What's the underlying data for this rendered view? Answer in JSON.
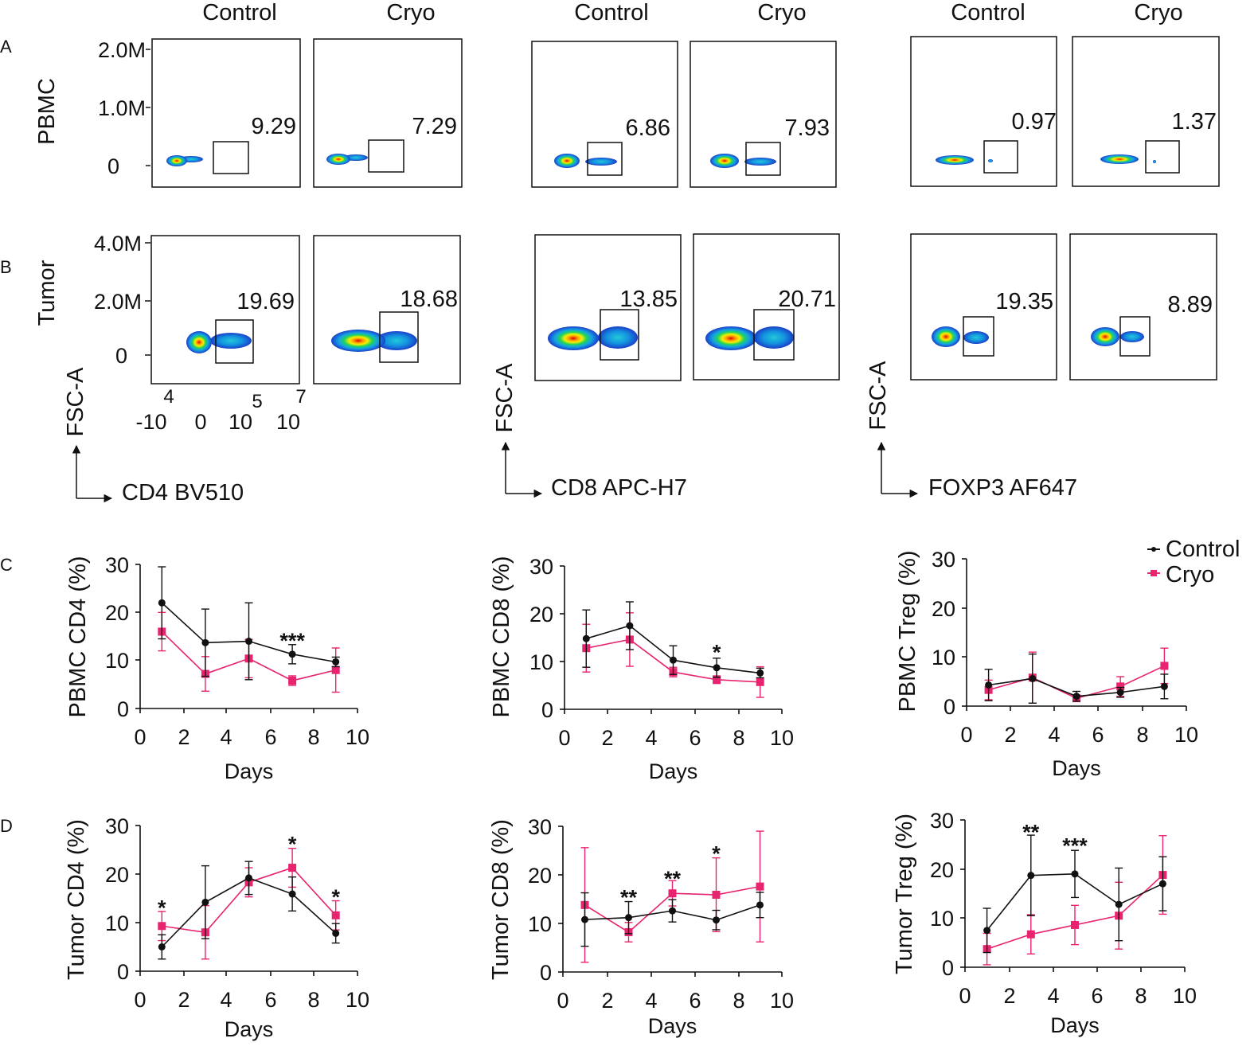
{
  "panel_letters": {
    "A": "A",
    "B": "B",
    "C": "C",
    "D": "D"
  },
  "column_headers": {
    "cd4_control": "Control",
    "cd4_cryo": "Cryo",
    "cd8_control": "Control",
    "cd8_cryo": "Cryo",
    "foxp3_control": "Control",
    "foxp3_cryo": "Cryo"
  },
  "row_labels": {
    "pbmc": "PBMC",
    "tumor": "Tumor"
  },
  "flow_axis": {
    "pbmc_ticks": [
      "2.0M",
      "1.0M",
      "0"
    ],
    "tumor_ticks": [
      "4.0M",
      "2.0M",
      "0"
    ],
    "x_exp": [
      "4",
      "5",
      "7"
    ],
    "x_base": [
      "-10",
      "0",
      "10",
      "10"
    ],
    "fsc_label": "FSC-A",
    "marker_cd4": "CD4  BV510",
    "marker_cd8": "CD8 APC-H7",
    "marker_foxp3": "FOXP3 AF647"
  },
  "flow_values": {
    "pbmc_cd4_control": "9.29",
    "pbmc_cd4_cryo": "7.29",
    "pbmc_cd8_control": "6.86",
    "pbmc_cd8_cryo": "7.93",
    "pbmc_foxp3_control": "0.97",
    "pbmc_foxp3_cryo": "1.37",
    "tumor_cd4_control": "19.69",
    "tumor_cd4_cryo": "18.68",
    "tumor_cd8_control": "13.85",
    "tumor_cd8_cryo": "20.71",
    "tumor_foxp3_control": "19.35",
    "tumor_foxp3_cryo": "8.89"
  },
  "legend": {
    "control": "Control",
    "cryo": "Cryo"
  },
  "colors": {
    "control": "#111111",
    "cryo": "#e8236f"
  },
  "chart_data": [
    {
      "id": "c1",
      "type": "line",
      "title": "",
      "xlabel": "Days",
      "ylabel": "PBMC CD4 (%)",
      "xlim": [
        0,
        10
      ],
      "ylim": [
        0,
        30
      ],
      "xticks": [
        "0",
        "2",
        "4",
        "6",
        "8",
        "10"
      ],
      "yticks": [
        "0",
        "10",
        "20",
        "30"
      ],
      "x": [
        1,
        3,
        5,
        7,
        9
      ],
      "series": [
        {
          "name": "Control",
          "values": [
            22,
            13.7,
            14,
            11.3,
            9.7
          ],
          "errors": [
            7.5,
            7,
            8,
            2,
            1
          ]
        },
        {
          "name": "Cryo",
          "values": [
            16,
            7.2,
            10.4,
            5.8,
            8
          ],
          "errors": [
            4,
            3.6,
            4,
            1,
            4.6
          ]
        }
      ],
      "annotations": [
        {
          "x": 7,
          "y": 14.6,
          "text": "***"
        }
      ]
    },
    {
      "id": "c2",
      "type": "line",
      "title": "",
      "xlabel": "Days",
      "ylabel": "PBMC CD8 (%)",
      "xlim": [
        0,
        10
      ],
      "ylim": [
        0,
        30
      ],
      "xticks": [
        "0",
        "2",
        "4",
        "6",
        "8",
        "10"
      ],
      "yticks": [
        "0",
        "10",
        "20",
        "30"
      ],
      "x": [
        1,
        3,
        5,
        7,
        9
      ],
      "series": [
        {
          "name": "Control",
          "values": [
            14.8,
            17.5,
            10.3,
            8.7,
            7.6
          ],
          "errors": [
            6,
            5,
            3,
            2,
            1
          ]
        },
        {
          "name": "Cryo",
          "values": [
            12.8,
            14.6,
            7.8,
            6.2,
            5.7
          ],
          "errors": [
            5,
            5.6,
            1,
            0.8,
            3.2
          ]
        }
      ],
      "annotations": [
        {
          "x": 7,
          "y": 12.4,
          "text": "*"
        }
      ]
    },
    {
      "id": "c3",
      "type": "line",
      "title": "",
      "xlabel": "Days",
      "ylabel": "PBMC Treg (%)",
      "xlim": [
        0,
        10
      ],
      "ylim": [
        0,
        30
      ],
      "xticks": [
        "0",
        "2",
        "4",
        "6",
        "8",
        "10"
      ],
      "yticks": [
        "0",
        "10",
        "20",
        "30"
      ],
      "x": [
        1,
        3,
        5,
        7,
        9
      ],
      "series": [
        {
          "name": "Control",
          "values": [
            4.3,
            5.6,
            2,
            2.8,
            4
          ],
          "errors": [
            3.2,
            5,
            1,
            1,
            2.5
          ]
        },
        {
          "name": "Cryo",
          "values": [
            3.3,
            5.8,
            1.6,
            4,
            8.2
          ],
          "errors": [
            2,
            5.2,
            0.5,
            2,
            3.6
          ]
        }
      ],
      "annotations": []
    },
    {
      "id": "d1",
      "type": "line",
      "title": "",
      "xlabel": "Days",
      "ylabel": "Tumor CD4 (%)",
      "xlim": [
        0,
        10
      ],
      "ylim": [
        0,
        30
      ],
      "xticks": [
        "0",
        "2",
        "4",
        "6",
        "8",
        "10"
      ],
      "yticks": [
        "0",
        "10",
        "20",
        "30"
      ],
      "x": [
        1,
        3,
        5,
        7,
        9
      ],
      "series": [
        {
          "name": "Control",
          "values": [
            5,
            14.2,
            19.2,
            15.9,
            7.8
          ],
          "errors": [
            2.5,
            7.5,
            3.4,
            3.5,
            2
          ]
        },
        {
          "name": "Cryo",
          "values": [
            9.3,
            8,
            18.3,
            21.3,
            11.5
          ],
          "errors": [
            3,
            5.5,
            3,
            4,
            3
          ]
        }
      ],
      "annotations": [
        {
          "x": 1,
          "y": 13.5,
          "text": "*"
        },
        {
          "x": 7,
          "y": 26.6,
          "text": "*"
        },
        {
          "x": 9,
          "y": 15.7,
          "text": "*"
        }
      ]
    },
    {
      "id": "d2",
      "type": "line",
      "title": "",
      "xlabel": "Days",
      "ylabel": "Tumor CD8 (%)",
      "xlim": [
        0,
        10
      ],
      "ylim": [
        0,
        30
      ],
      "xticks": [
        "0",
        "2",
        "4",
        "6",
        "8",
        "10"
      ],
      "yticks": [
        "0",
        "10",
        "20",
        "30"
      ],
      "x": [
        1,
        3,
        5,
        7,
        9
      ],
      "series": [
        {
          "name": "Control",
          "values": [
            10.8,
            11.2,
            12.6,
            10.7,
            13.8
          ],
          "errors": [
            5.5,
            3.3,
            2.3,
            2,
            2.6
          ]
        },
        {
          "name": "Cryo",
          "values": [
            13.8,
            8.2,
            16.2,
            15.9,
            17.6
          ],
          "errors": [
            11.8,
            2,
            2.6,
            7.6,
            11.4
          ]
        }
      ],
      "annotations": [
        {
          "x": 3,
          "y": 15.8,
          "text": "**"
        },
        {
          "x": 5,
          "y": 19.7,
          "text": "**"
        },
        {
          "x": 7,
          "y": 24.8,
          "text": "*"
        }
      ]
    },
    {
      "id": "d3",
      "type": "line",
      "title": "",
      "xlabel": "Days",
      "ylabel": "Tumor Treg (%)",
      "xlim": [
        0,
        10
      ],
      "ylim": [
        0,
        30
      ],
      "xticks": [
        "0",
        "2",
        "4",
        "6",
        "8",
        "10"
      ],
      "yticks": [
        "0",
        "10",
        "20",
        "30"
      ],
      "x": [
        1,
        3,
        5,
        7,
        9
      ],
      "series": [
        {
          "name": "Control",
          "values": [
            7.5,
            18.7,
            19,
            12.8,
            17
          ],
          "errors": [
            4.5,
            8.2,
            4.8,
            7.4,
            5.5
          ]
        },
        {
          "name": "Cryo",
          "values": [
            3.7,
            6.7,
            8.6,
            10.5,
            18.8
          ],
          "errors": [
            3.2,
            4,
            4,
            6.8,
            8
          ]
        }
      ],
      "annotations": [
        {
          "x": 3,
          "y": 28,
          "text": "**"
        },
        {
          "x": 5,
          "y": 25.2,
          "text": "***"
        }
      ]
    }
  ]
}
